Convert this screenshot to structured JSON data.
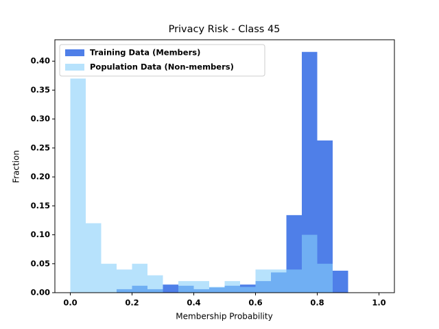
{
  "chart_data": {
    "type": "histogram",
    "title": "Privacy Risk - Class 45",
    "x_label": "Membership Probability",
    "y_label": "Fraction",
    "bins": [
      0,
      0.05,
      0.1,
      0.15,
      0.2,
      0.25,
      0.3,
      0.35,
      0.4,
      0.45,
      0.5,
      0.55,
      0.6,
      0.65,
      0.7,
      0.75,
      0.8,
      0.85,
      0.9,
      0.95,
      1.0
    ],
    "series": [
      {
        "name": "Training Data (Members)",
        "color": "#4f7fe8",
        "alpha": 1,
        "values": [
          0,
          0,
          0,
          0.006,
          0.012,
          0.006,
          0.014,
          0.012,
          0.006,
          0.009,
          0.012,
          0.014,
          0.02,
          0.035,
          0.134,
          0.416,
          0.263,
          0.038,
          0,
          0
        ]
      },
      {
        "name": "Population Data (Non-members)",
        "color": "#87cefa",
        "alpha": 0.6,
        "values": [
          0.37,
          0.12,
          0.05,
          0.04,
          0.05,
          0.03,
          0,
          0.02,
          0.02,
          0.01,
          0.02,
          0.01,
          0.04,
          0.04,
          0.04,
          0.1,
          0.05,
          0,
          0,
          0
        ]
      }
    ],
    "xlim": [
      -0.05,
      1.05
    ],
    "ylim": [
      0,
      0.437
    ],
    "xticks": [
      {
        "value": 0,
        "label": "0.0"
      },
      0.2,
      0.4,
      0.6,
      0.8,
      {
        "value": 1,
        "label": "1.0"
      }
    ],
    "yticks": [
      {
        "value": 0,
        "label": "0.00"
      },
      {
        "value": 0.05,
        "label": "0.05"
      },
      {
        "value": 0.1,
        "label": "0.10"
      },
      {
        "value": 0.15,
        "label": "0.15"
      },
      {
        "value": 0.2,
        "label": "0.20"
      },
      {
        "value": 0.25,
        "label": "0.25"
      },
      {
        "value": 0.3,
        "label": "0.30"
      },
      {
        "value": 0.35,
        "label": "0.35"
      },
      {
        "value": 0.4,
        "label": "0.40"
      }
    ],
    "legend": "upper left",
    "grid": false
  }
}
